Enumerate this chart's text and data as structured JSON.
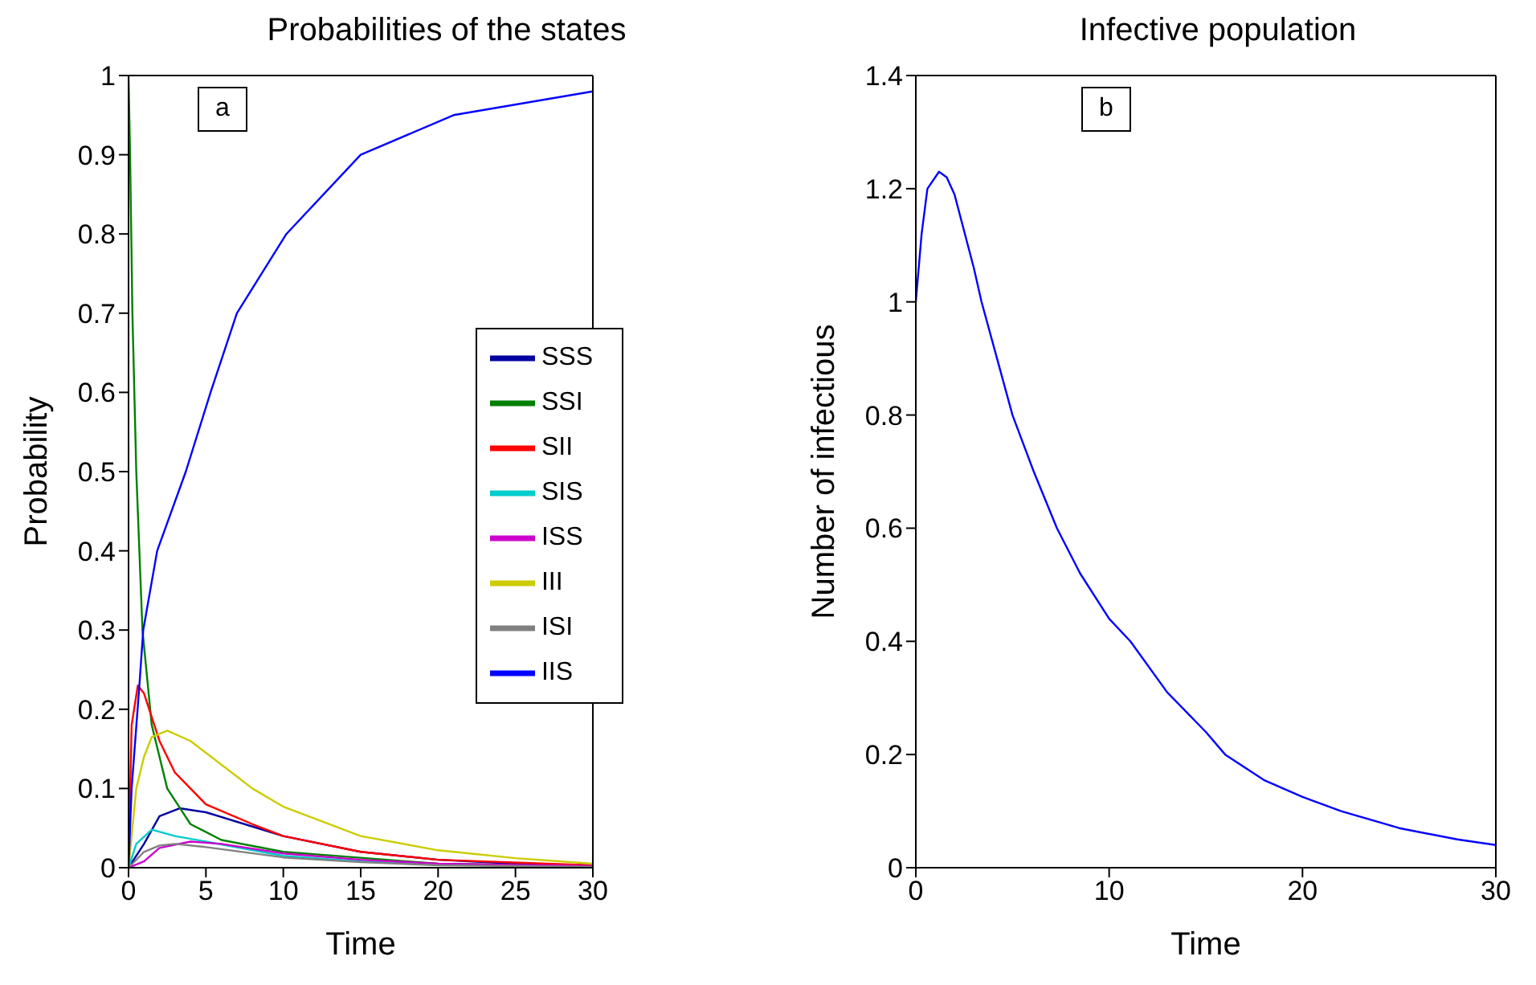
{
  "chart_data": [
    {
      "type": "line",
      "title": "Probabilities of the states",
      "xlabel": "Time",
      "ylabel": "Probability",
      "xlim": [
        0,
        30
      ],
      "xticks": [
        0,
        5,
        10,
        15,
        20,
        25,
        30
      ],
      "ylim": [
        0,
        1
      ],
      "yticks": [
        0,
        0.1,
        0.2,
        0.3,
        0.4,
        0.5,
        0.6,
        0.7,
        0.8,
        0.9,
        1
      ],
      "legend": "right",
      "annotations": [
        "a"
      ],
      "series": [
        {
          "name": "SSS",
          "color": "#0000a0",
          "x": [
            0,
            1,
            2,
            3.3,
            5,
            8,
            10,
            15,
            20,
            25,
            30
          ],
          "values": [
            0,
            0.03,
            0.065,
            0.075,
            0.07,
            0.052,
            0.04,
            0.02,
            0.01,
            0.005,
            0.003
          ]
        },
        {
          "name": "SSI",
          "color": "#008000",
          "x": [
            0,
            0.1,
            0.25,
            0.5,
            0.9,
            1.5,
            2.5,
            4,
            6,
            10,
            20,
            30
          ],
          "values": [
            1,
            0.9,
            0.7,
            0.5,
            0.3,
            0.18,
            0.1,
            0.055,
            0.035,
            0.02,
            0.005,
            0.002
          ]
        },
        {
          "name": "SII",
          "color": "#ff0000",
          "x": [
            0,
            0.2,
            0.6,
            1,
            2,
            3,
            5,
            8,
            10,
            15,
            20,
            30
          ],
          "values": [
            0,
            0.18,
            0.23,
            0.22,
            0.16,
            0.12,
            0.08,
            0.055,
            0.04,
            0.02,
            0.01,
            0.003
          ]
        },
        {
          "name": "SIS",
          "color": "#00cccc",
          "x": [
            0,
            0.5,
            1.5,
            3,
            5,
            10,
            15,
            20,
            30
          ],
          "values": [
            0,
            0.03,
            0.048,
            0.04,
            0.033,
            0.015,
            0.008,
            0.004,
            0.001
          ]
        },
        {
          "name": "ISS",
          "color": "#cc00cc",
          "x": [
            0,
            1,
            2,
            4,
            6,
            10,
            15,
            20,
            30
          ],
          "values": [
            0,
            0.008,
            0.025,
            0.033,
            0.03,
            0.018,
            0.01,
            0.005,
            0.002
          ]
        },
        {
          "name": "III",
          "color": "#cccc00",
          "x": [
            0,
            0.5,
            1,
            1.5,
            2.5,
            4,
            6,
            8,
            10,
            15,
            20,
            25,
            30
          ],
          "values": [
            0,
            0.1,
            0.14,
            0.165,
            0.173,
            0.16,
            0.13,
            0.1,
            0.077,
            0.04,
            0.022,
            0.012,
            0.005
          ]
        },
        {
          "name": "ISI",
          "color": "#808080",
          "x": [
            0,
            1,
            2,
            3,
            5,
            10,
            15,
            20,
            30
          ],
          "values": [
            0,
            0.02,
            0.028,
            0.03,
            0.026,
            0.013,
            0.007,
            0.003,
            0.001
          ]
        },
        {
          "name": "IIS",
          "color": "#0000ff",
          "x": [
            0,
            0.2,
            0.7,
            0.95,
            1.85,
            3.7,
            5.3,
            7,
            10.2,
            15,
            21,
            30
          ],
          "values": [
            0,
            0.1,
            0.23,
            0.3,
            0.4,
            0.5,
            0.6,
            0.7,
            0.8,
            0.9,
            0.95,
            0.98
          ]
        }
      ]
    },
    {
      "type": "line",
      "title": "Infective population",
      "xlabel": "Time",
      "ylabel": "Number of infectious",
      "xlim": [
        0,
        30
      ],
      "xticks": [
        0,
        10,
        20,
        30
      ],
      "ylim": [
        0,
        1.4
      ],
      "yticks": [
        0,
        0.2,
        0.4,
        0.6,
        0.8,
        1,
        1.2,
        1.4
      ],
      "annotations": [
        "b"
      ],
      "series": [
        {
          "color": "#0000ff",
          "x": [
            0,
            0.3,
            0.6,
            1.2,
            1.6,
            2,
            3,
            3.4,
            4.2,
            5,
            6.1,
            7.3,
            8.5,
            10,
            11.1,
            13,
            15,
            16,
            18,
            20,
            22,
            25,
            28,
            30
          ],
          "values": [
            1,
            1.12,
            1.2,
            1.23,
            1.22,
            1.19,
            1.06,
            1,
            0.9,
            0.8,
            0.7,
            0.6,
            0.52,
            0.44,
            0.4,
            0.31,
            0.24,
            0.2,
            0.155,
            0.125,
            0.1,
            0.07,
            0.05,
            0.04
          ]
        }
      ]
    }
  ]
}
